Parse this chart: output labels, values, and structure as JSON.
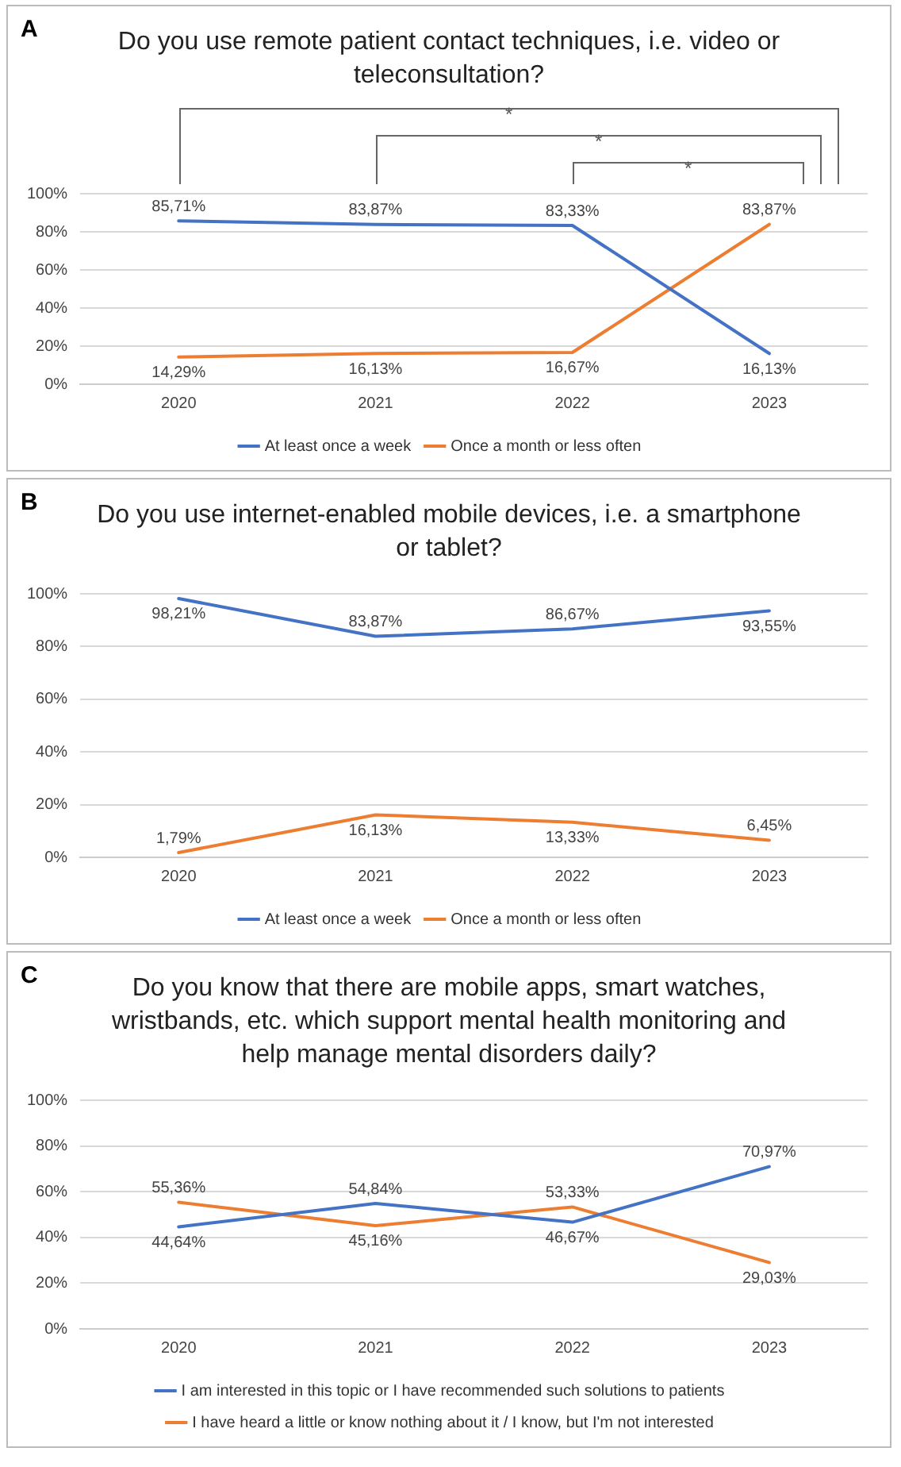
{
  "chart_data": [
    {
      "type": "line",
      "title": "Do you use remote patient contact techniques, i.e. video or teleconsultation?",
      "categories": [
        "2020",
        "2021",
        "2022",
        "2023"
      ],
      "series": [
        {
          "name": "At least once a week",
          "color": "#4472c4",
          "values": [
            85.71,
            83.87,
            83.33,
            16.13
          ],
          "value_labels": [
            "85,71%",
            "83,87%",
            "83,33%",
            "16,13%"
          ]
        },
        {
          "name": "Once a month or less often",
          "color": "#ed7d31",
          "values": [
            14.29,
            16.13,
            16.67,
            83.87
          ],
          "value_labels": [
            "14,29%",
            "16,13%",
            "16,67%",
            "83,87%"
          ]
        }
      ],
      "ylim": [
        0,
        100
      ],
      "yticks": [
        {
          "value": 0,
          "label": "0%"
        },
        {
          "value": 20,
          "label": "20%"
        },
        {
          "value": 40,
          "label": "40%"
        },
        {
          "value": 60,
          "label": "60%"
        },
        {
          "value": 80,
          "label": "80%"
        },
        {
          "value": 100,
          "label": "100%"
        }
      ],
      "grid": "y",
      "legend": "bottom",
      "marker": "none",
      "line_style": "solid",
      "annotations": [
        "A",
        "*",
        "*",
        "*"
      ]
    },
    {
      "type": "line",
      "title": "Do you use internet-enabled mobile devices, i.e. a smartphone or tablet?",
      "categories": [
        "2020",
        "2021",
        "2022",
        "2023"
      ],
      "series": [
        {
          "name": "At least once a week",
          "color": "#4472c4",
          "values": [
            98.21,
            83.87,
            86.67,
            93.55
          ],
          "value_labels": [
            "98,21%",
            "83,87%",
            "86,67%",
            "93,55%"
          ]
        },
        {
          "name": "Once a month or less often",
          "color": "#ed7d31",
          "values": [
            1.79,
            16.13,
            13.33,
            6.45
          ],
          "value_labels": [
            "1,79%",
            "16,13%",
            "13,33%",
            "6,45%"
          ]
        }
      ],
      "ylim": [
        0,
        100
      ],
      "yticks": [
        {
          "value": 0,
          "label": "0%"
        },
        {
          "value": 20,
          "label": "20%"
        },
        {
          "value": 40,
          "label": "40%"
        },
        {
          "value": 60,
          "label": "60%"
        },
        {
          "value": 80,
          "label": "80%"
        },
        {
          "value": 100,
          "label": "100%"
        }
      ],
      "grid": "y",
      "legend": "bottom",
      "marker": "none",
      "line_style": "solid",
      "annotations": [
        "B"
      ]
    },
    {
      "type": "line",
      "title": "Do you know that there are mobile apps, smart watches, wristbands, etc. which support mental health monitoring and help manage mental disorders daily?",
      "categories": [
        "2020",
        "2021",
        "2022",
        "2023"
      ],
      "series": [
        {
          "name": "I am interested in this topic or I have recommended such solutions to patients",
          "color": "#4472c4",
          "values": [
            44.64,
            54.84,
            46.67,
            70.97
          ],
          "value_labels": [
            "44,64%",
            "54,84%",
            "46,67%",
            "70,97%"
          ]
        },
        {
          "name": "I have heard a little or know nothing about it / I know, but I'm not interested",
          "color": "#ed7d31",
          "values": [
            55.36,
            45.16,
            53.33,
            29.03
          ],
          "value_labels": [
            "55,36%",
            "45,16%",
            "53,33%",
            "29,03%"
          ]
        }
      ],
      "ylim": [
        0,
        100
      ],
      "yticks": [
        {
          "value": 0,
          "label": "0%"
        },
        {
          "value": 20,
          "label": "20%"
        },
        {
          "value": 40,
          "label": "40%"
        },
        {
          "value": 60,
          "label": "60%"
        },
        {
          "value": 80,
          "label": "80%"
        },
        {
          "value": 100,
          "label": "100%"
        }
      ],
      "grid": "y",
      "legend": "bottom",
      "marker": "none",
      "line_style": "solid",
      "annotations": [
        "C"
      ]
    }
  ]
}
